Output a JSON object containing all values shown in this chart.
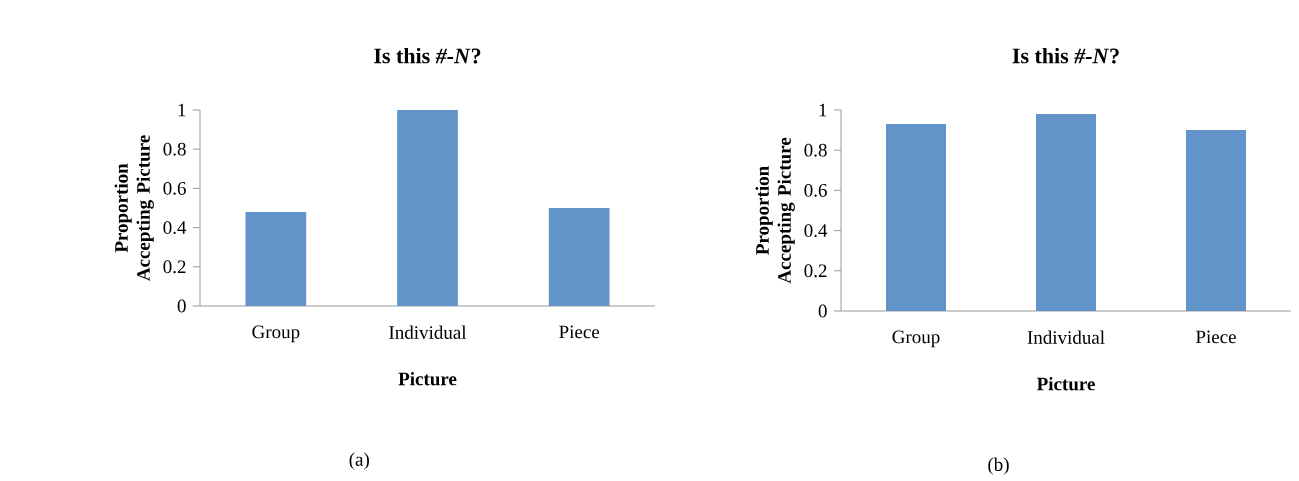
{
  "chart_data": [
    {
      "type": "bar",
      "title": "Is this *#-N*?",
      "xlabel": "Picture",
      "ylabel": "Proportion Accepting Picture",
      "categories": [
        "Group",
        "Individual",
        "Piece"
      ],
      "values": [
        0.48,
        1,
        0.5
      ],
      "color": "#6294c9",
      "ylim": [
        0,
        1
      ],
      "yticks": [
        0,
        0.2,
        0.4,
        0.6,
        0.8,
        1
      ],
      "grid": false,
      "annotations": [
        "(a)"
      ]
    },
    {
      "type": "bar",
      "title": "Is this *#-N*?",
      "xlabel": "Picture",
      "ylabel": "Proportion Accepting Picture",
      "categories": [
        "Group",
        "Individual",
        "Piece"
      ],
      "values": [
        0.93,
        0.98,
        0.9
      ],
      "color": "#6294c9",
      "ylim": [
        0,
        1
      ],
      "yticks": [
        0,
        0.2,
        0.4,
        0.6,
        0.8,
        1
      ],
      "grid": false,
      "annotations": [
        "(b)"
      ]
    }
  ]
}
